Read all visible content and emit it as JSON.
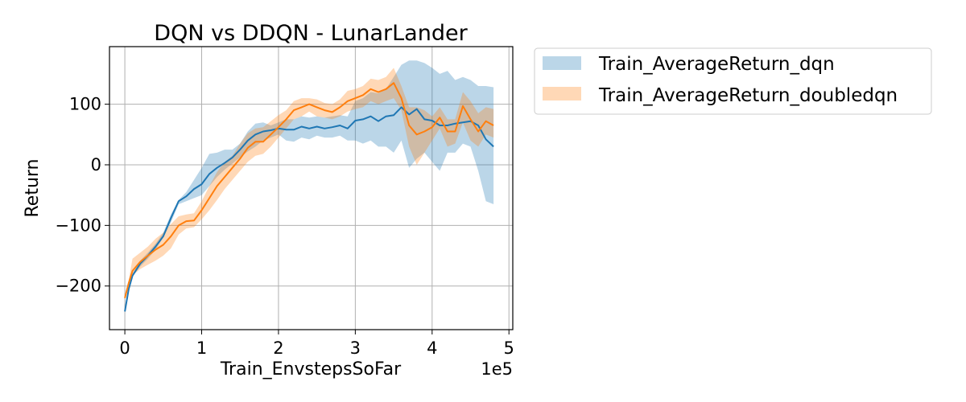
{
  "chart_data": {
    "type": "line",
    "title": "DQN vs DDQN - LunarLander",
    "xlabel": "Train_EnvstepsSoFar",
    "ylabel": "Return",
    "x_offset_label": "1e5",
    "xlim": [
      -0.2,
      5.05
    ],
    "ylim": [
      -272,
      195
    ],
    "x_ticks": [
      0,
      1,
      2,
      3,
      4,
      5
    ],
    "x_tick_labels": [
      "0",
      "1",
      "2",
      "3",
      "4",
      "5"
    ],
    "y_ticks": [
      -200,
      -100,
      0,
      100
    ],
    "y_tick_labels": [
      "−200",
      "−100",
      "0",
      "100"
    ],
    "grid": true,
    "legend_placement": "outside-right",
    "x_unit_scale": 100000,
    "series": [
      {
        "name": "Train_AverageReturn_dqn",
        "color": "#1f77b4",
        "band_color": "#1f77b4",
        "band_opacity": 0.3,
        "x": [
          0,
          0.05,
          0.1,
          0.2,
          0.3,
          0.4,
          0.5,
          0.6,
          0.7,
          0.8,
          0.9,
          1.0,
          1.1,
          1.2,
          1.3,
          1.4,
          1.5,
          1.6,
          1.7,
          1.8,
          1.9,
          2.0,
          2.1,
          2.2,
          2.3,
          2.4,
          2.5,
          2.6,
          2.7,
          2.8,
          2.9,
          3.0,
          3.1,
          3.2,
          3.3,
          3.4,
          3.5,
          3.6,
          3.7,
          3.8,
          3.9,
          4.0,
          4.1,
          4.2,
          4.3,
          4.4,
          4.5,
          4.6,
          4.7,
          4.8
        ],
        "mean": [
          -242,
          -205,
          -183,
          -163,
          -150,
          -135,
          -118,
          -88,
          -60,
          -52,
          -40,
          -32,
          -15,
          -5,
          3,
          12,
          25,
          40,
          50,
          55,
          57,
          60,
          58,
          58,
          63,
          60,
          63,
          60,
          62,
          65,
          60,
          73,
          75,
          80,
          72,
          80,
          82,
          95,
          83,
          92,
          75,
          73,
          65,
          65,
          68,
          70,
          72,
          65,
          42,
          30
        ],
        "lower": [
          -242,
          -205,
          -185,
          -168,
          -155,
          -140,
          -120,
          -95,
          -65,
          -60,
          -55,
          -50,
          -35,
          -20,
          -8,
          2,
          12,
          22,
          30,
          40,
          45,
          50,
          40,
          38,
          45,
          42,
          48,
          45,
          45,
          48,
          40,
          40,
          35,
          40,
          30,
          30,
          20,
          40,
          -5,
          10,
          20,
          5,
          -10,
          20,
          20,
          35,
          30,
          -10,
          -60,
          -65
        ],
        "upper": [
          -242,
          -205,
          -180,
          -158,
          -145,
          -130,
          -112,
          -82,
          -58,
          -45,
          -25,
          -5,
          18,
          20,
          25,
          25,
          35,
          55,
          68,
          70,
          65,
          70,
          75,
          75,
          80,
          78,
          80,
          78,
          80,
          82,
          80,
          105,
          110,
          120,
          118,
          125,
          145,
          165,
          172,
          172,
          168,
          160,
          150,
          155,
          140,
          145,
          140,
          130,
          130,
          128
        ]
      },
      {
        "name": "Train_AverageReturn_doubledqn",
        "color": "#ff7f0e",
        "band_color": "#ff7f0e",
        "band_opacity": 0.3,
        "x": [
          0,
          0.05,
          0.1,
          0.2,
          0.3,
          0.4,
          0.5,
          0.6,
          0.7,
          0.8,
          0.9,
          1.0,
          1.1,
          1.2,
          1.3,
          1.4,
          1.5,
          1.6,
          1.7,
          1.8,
          1.9,
          2.0,
          2.1,
          2.2,
          2.3,
          2.4,
          2.5,
          2.6,
          2.7,
          2.8,
          2.9,
          3.0,
          3.1,
          3.2,
          3.3,
          3.4,
          3.5,
          3.6,
          3.7,
          3.8,
          3.9,
          4.0,
          4.1,
          4.2,
          4.3,
          4.4,
          4.5,
          4.6,
          4.7,
          4.8
        ],
        "mean": [
          -220,
          -195,
          -175,
          -160,
          -150,
          -140,
          -132,
          -118,
          -100,
          -93,
          -92,
          -75,
          -55,
          -35,
          -20,
          -5,
          10,
          28,
          38,
          38,
          50,
          62,
          75,
          90,
          95,
          100,
          95,
          90,
          87,
          95,
          105,
          110,
          115,
          125,
          120,
          125,
          135,
          110,
          65,
          50,
          55,
          62,
          78,
          55,
          55,
          97,
          75,
          55,
          72,
          65
        ],
        "lower": [
          -220,
          -200,
          -182,
          -172,
          -165,
          -158,
          -150,
          -138,
          -115,
          -105,
          -103,
          -90,
          -75,
          -58,
          -40,
          -25,
          -10,
          5,
          15,
          18,
          30,
          45,
          60,
          75,
          80,
          88,
          80,
          78,
          75,
          80,
          88,
          92,
          95,
          105,
          100,
          105,
          110,
          90,
          30,
          0,
          20,
          40,
          60,
          30,
          35,
          70,
          40,
          30,
          50,
          45
        ],
        "upper": [
          -220,
          -190,
          -155,
          -145,
          -135,
          -122,
          -112,
          -98,
          -85,
          -82,
          -80,
          -60,
          -35,
          -12,
          5,
          15,
          35,
          52,
          60,
          62,
          72,
          82,
          90,
          105,
          110,
          110,
          108,
          102,
          100,
          108,
          122,
          125,
          130,
          142,
          140,
          145,
          160,
          130,
          95,
          95,
          90,
          80,
          95,
          75,
          75,
          120,
          105,
          85,
          95,
          92
        ]
      }
    ]
  }
}
